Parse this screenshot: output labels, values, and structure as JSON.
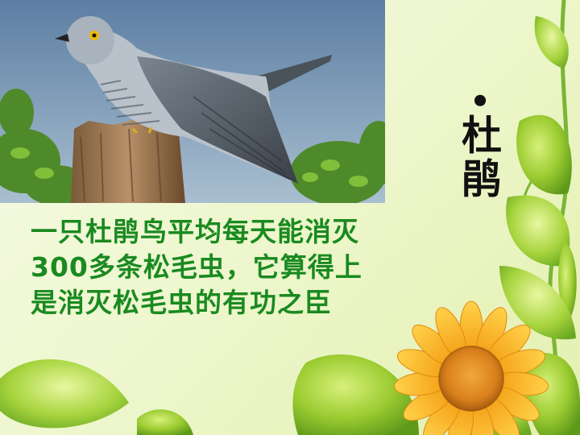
{
  "slide": {
    "caption_bullet": "•",
    "caption_text": "杜鹃",
    "description": "一只杜鹃鸟平均每天能消灭300多条松毛虫，它算得上是消灭松毛虫的有功之臣"
  },
  "images": {
    "photo": "cuckoo-on-tree-stump",
    "decoration": "sunflower-and-green-leaves"
  },
  "colors": {
    "text_green": "#1a8a20",
    "caption": "#111111",
    "leaf_green": "#8cc63f",
    "petal_yellow": "#f6b21c"
  }
}
